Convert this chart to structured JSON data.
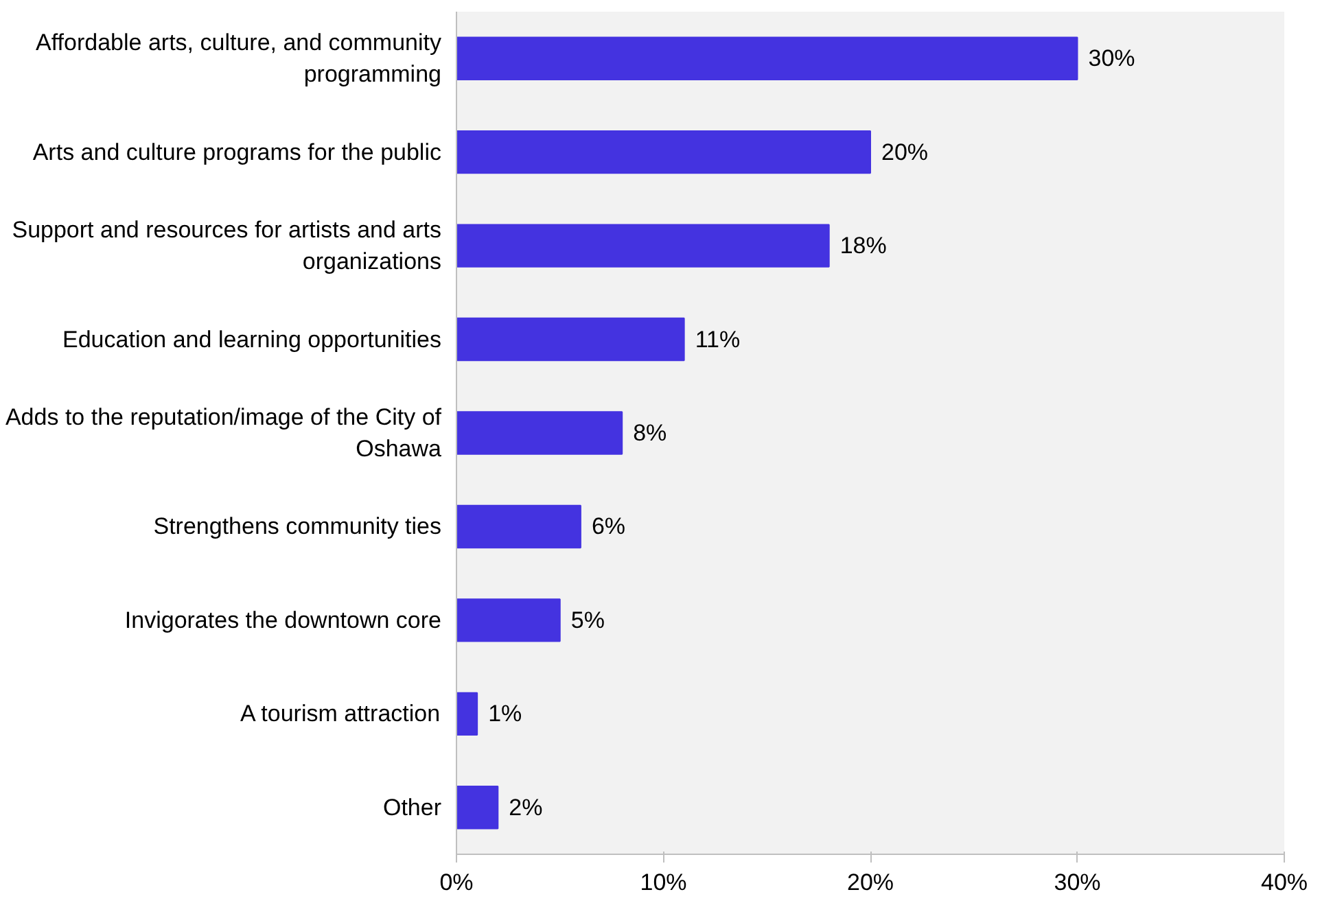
{
  "chart_data": {
    "type": "bar",
    "orientation": "horizontal",
    "categories": [
      "Affordable arts, culture, and community programming",
      "Arts and culture programs for the public",
      "Support and resources for artists and arts organizations",
      "Education and learning opportunities",
      "Adds to the reputation/image of the City of Oshawa",
      "Strengthens community ties",
      "Invigorates the downtown core",
      "A tourism attraction",
      "Other"
    ],
    "values": [
      30,
      20,
      18,
      11,
      8,
      6,
      5,
      1,
      2
    ],
    "value_labels": [
      "30%",
      "20%",
      "18%",
      "11%",
      "8%",
      "6%",
      "5%",
      "1%",
      "2%"
    ],
    "color": "#4433e0",
    "xlim": [
      0,
      40
    ],
    "xticks": [
      {
        "value": 0,
        "label": "0%"
      },
      {
        "value": 10,
        "label": "10%"
      },
      {
        "value": 20,
        "label": "20%"
      },
      {
        "value": 30,
        "label": "30%"
      },
      {
        "value": 40,
        "label": "40%"
      }
    ],
    "grid": false
  }
}
